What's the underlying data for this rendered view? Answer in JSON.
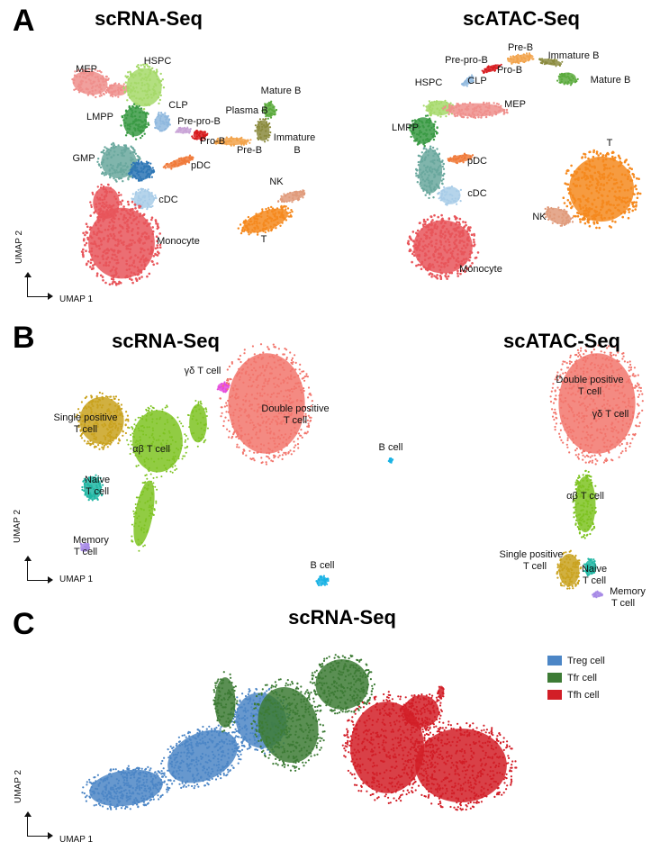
{
  "panels": {
    "A": {
      "letter": "A",
      "left_title": "scRNA-Seq",
      "right_title": "scATAC-Seq"
    },
    "B": {
      "letter": "B",
      "left_title": "scRNA-Seq",
      "right_title": "scATAC-Seq"
    },
    "C": {
      "letter": "C",
      "title": "scRNA-Seq"
    }
  },
  "axes": {
    "x_label": "UMAP 1",
    "y_label": "UMAP 2"
  },
  "colors": {
    "MEP": "#ef8f8c",
    "HSPC": "#a6d96a",
    "LMPP": "#3a9a44",
    "CLP": "#8fb8de",
    "GMP": "#6aa89e",
    "Pre-pro-B": "#c8a2d6",
    "Pro-B": "#d7191c",
    "Pre-B": "#f2a34b",
    "Immature B": "#8a8a3d",
    "Mature B": "#5aaa3c",
    "Plasma B": "#e8c86e",
    "pDC": "#f07a3a",
    "cDC": "#a8cce8",
    "cDC-dark": "#2d76b5",
    "Monocyte": "#e8555a",
    "NK": "#e09a7a",
    "T": "#f5891e",
    "Single positive T cell": "#c9a21e",
    "αβ T cell": "#7ec322",
    "γδ T cell": "#e54bdc",
    "Double positive T cell": "#f2756c",
    "Naive T cell": "#1fb6a3",
    "Memory T cell": "#a78ae6",
    "B cell": "#19b2e4",
    "Treg cell": "#4c86c6",
    "Tfr cell": "#3d7b35",
    "Tfh cell": "#d21e27"
  },
  "chart_data": [
    {
      "type": "scatter",
      "panel": "A",
      "title": "scRNA-Seq",
      "xlabel": "UMAP 1",
      "ylabel": "UMAP 2",
      "labels": [
        "MEP",
        "HSPC",
        "LMPP",
        "CLP",
        "Pre-pro-B",
        "Plasma B",
        "Mature B",
        "Immature B",
        "Pro-B",
        "Pre-B",
        "GMP",
        "pDC",
        "cDC",
        "Monocyte",
        "NK",
        "T"
      ],
      "note_lines": {
        "Immature B": [
          "Immature",
          "B"
        ]
      }
    },
    {
      "type": "scatter",
      "panel": "A",
      "title": "scATAC-Seq",
      "labels": [
        "Pre-B",
        "Pre-pro-B",
        "Immature B",
        "Pro-B",
        "Mature B",
        "HSPC",
        "CLP",
        "MEP",
        "LMPP",
        "pDC",
        "T",
        "cDC",
        "NK",
        "Monocyte"
      ]
    },
    {
      "type": "scatter",
      "panel": "B",
      "title": "scRNA-Seq",
      "xlabel": "UMAP 1",
      "ylabel": "UMAP 2",
      "labels": [
        "γδ T cell",
        "Double positive T cell",
        "Single positive T cell",
        "αβ T cell",
        "B cell",
        "Naive T cell",
        "Memory T cell",
        "B cell"
      ]
    },
    {
      "type": "scatter",
      "panel": "B",
      "title": "scATAC-Seq",
      "labels": [
        "Double positive T cell",
        "γδ T cell",
        "αβ T cell",
        "Single positive T cell",
        "Naive T cell",
        "Memory T cell"
      ]
    },
    {
      "type": "scatter",
      "panel": "C",
      "title": "scRNA-Seq",
      "xlabel": "UMAP 1",
      "ylabel": "UMAP 2",
      "legend": [
        "Treg cell",
        "Tfr cell",
        "Tfh cell"
      ],
      "legend_position": "top-right"
    }
  ],
  "cluster_labels": {
    "a_rna": {
      "mep": "MEP",
      "hspc": "HSPC",
      "lmpp": "LMPP",
      "clp": "CLP",
      "prepro": "Pre-pro-B",
      "plasma": "Plasma B",
      "mature": "Mature B",
      "imm1": "Immature",
      "imm2": "B",
      "prob": "Pro-B",
      "preb": "Pre-B",
      "gmp": "GMP",
      "pdc": "pDC",
      "cdc": "cDC",
      "mono": "Monocyte",
      "nk": "NK",
      "t": "T"
    },
    "a_atac": {
      "preb": "Pre-B",
      "prepro": "Pre-pro-B",
      "imm": "Immature B",
      "prob": "Pro-B",
      "mature": "Mature B",
      "hspc": "HSPC",
      "clp": "CLP",
      "mep": "MEP",
      "lmpp": "LMPP",
      "pdc": "pDC",
      "t": "T",
      "cdc": "cDC",
      "nk": "NK",
      "mono": "Monocyte"
    },
    "b_rna": {
      "gd": "γδ T cell",
      "dp1": "Double positive",
      "dp2": "T cell",
      "sp1": "Single positive",
      "sp2": "T cell",
      "ab": "αβ T cell",
      "bcell1": "B cell",
      "naive1": "Naive",
      "naive2": "T cell",
      "mem1": "Memory",
      "mem2": "T cell",
      "bcell2": "B cell"
    },
    "b_atac": {
      "dp1": "Double positive",
      "dp2": "T cell",
      "gd": "γδ T cell",
      "ab": "αβ T cell",
      "sp1": "Single positive",
      "sp2": "T cell",
      "naive1": "Naive",
      "naive2": "T cell",
      "mem1": "Memory",
      "mem2": "T cell"
    }
  },
  "legend_c": [
    {
      "label": "Treg cell",
      "color": "#4c86c6"
    },
    {
      "label": "Tfr cell",
      "color": "#3d7b35"
    },
    {
      "label": "Tfh cell",
      "color": "#d21e27"
    }
  ]
}
